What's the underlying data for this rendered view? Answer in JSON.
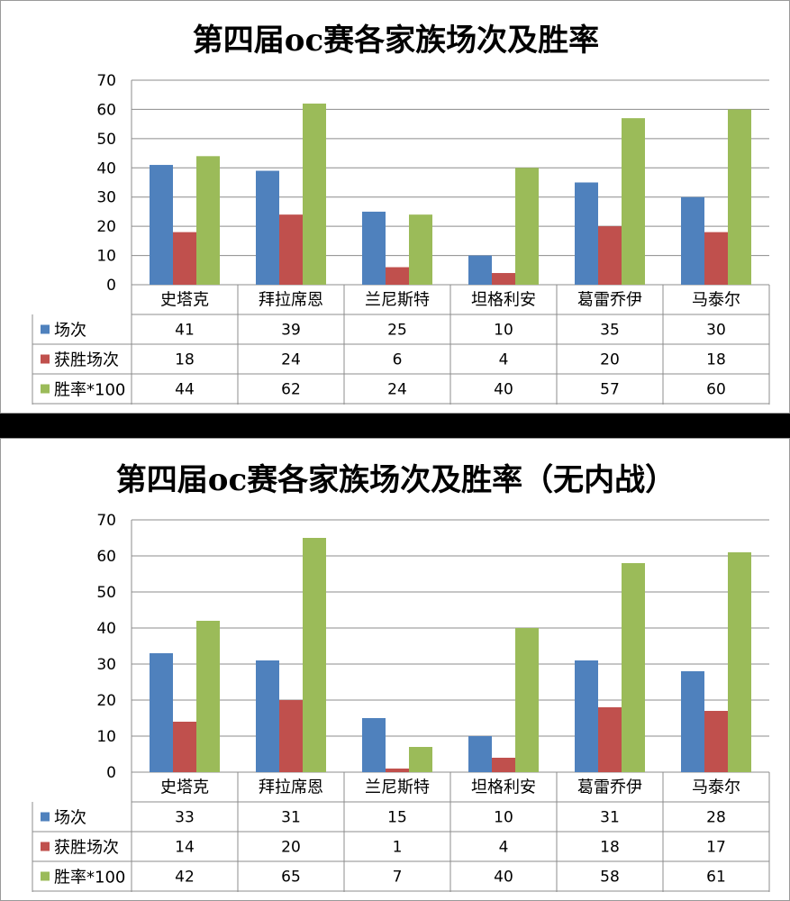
{
  "chart_data": [
    {
      "type": "bar",
      "title": "第四届oc赛各家族场次及胜率",
      "categories": [
        "史塔克",
        "拜拉席恩",
        "兰尼斯特",
        "坦格利安",
        "葛雷乔伊",
        "马泰尔"
      ],
      "series": [
        {
          "name": "场次",
          "values": [
            41,
            39,
            25,
            10,
            35,
            30
          ],
          "color": "#4f81bd"
        },
        {
          "name": "获胜场次",
          "values": [
            18,
            24,
            6,
            4,
            20,
            18
          ],
          "color": "#c0504d"
        },
        {
          "name": "胜率*100",
          "values": [
            44,
            62,
            24,
            40,
            57,
            60
          ],
          "color": "#9bbb59"
        }
      ],
      "ylim": [
        0,
        70
      ],
      "yticks": [
        "0",
        "10",
        "20",
        "30",
        "40",
        "50",
        "60",
        "70"
      ],
      "grid": true,
      "legend": "data table"
    },
    {
      "type": "bar",
      "title": "第四届oc赛各家族场次及胜率（无内战）",
      "categories": [
        "史塔克",
        "拜拉席恩",
        "兰尼斯特",
        "坦格利安",
        "葛雷乔伊",
        "马泰尔"
      ],
      "series": [
        {
          "name": "场次",
          "values": [
            33,
            31,
            15,
            10,
            31,
            28
          ],
          "color": "#4f81bd"
        },
        {
          "name": "获胜场次",
          "values": [
            14,
            20,
            1,
            4,
            18,
            17
          ],
          "color": "#c0504d"
        },
        {
          "name": "胜率*100",
          "values": [
            42,
            65,
            7,
            40,
            58,
            61
          ],
          "color": "#9bbb59"
        }
      ],
      "ylim": [
        0,
        70
      ],
      "yticks": [
        "0",
        "10",
        "20",
        "30",
        "40",
        "50",
        "60",
        "70"
      ],
      "grid": true,
      "legend": "data table"
    }
  ]
}
